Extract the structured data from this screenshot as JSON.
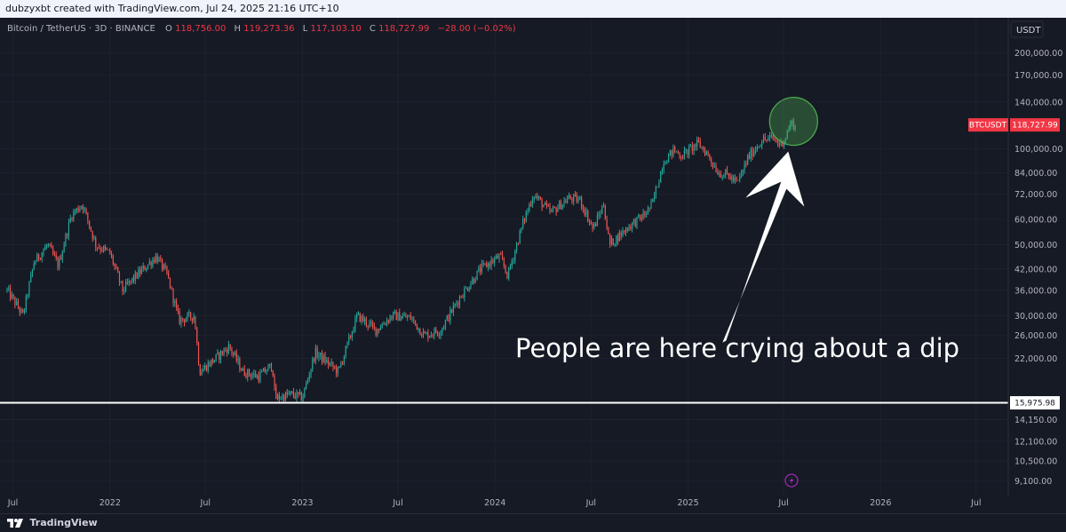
{
  "header": {
    "credit": "dubzyxbt created with TradingView.com, Jul 24, 2025 21:16 UTC+10"
  },
  "symbol_info": {
    "name": "Bitcoin / TetherUS · 3D · BINANCE",
    "open_label": "O",
    "open": "118,756.00",
    "high_label": "H",
    "high": "119,273.36",
    "low_label": "L",
    "low": "117,103.10",
    "close_label": "C",
    "close": "118,727.99",
    "change": "−28.00 (−0.02%)"
  },
  "price_axis": {
    "currency": "USDT",
    "ticks": [
      "200,000.00",
      "170,000.00",
      "140,000.00",
      "100,000.00",
      "84,000.00",
      "72,000.00",
      "60,000.00",
      "50,000.00",
      "42,000.00",
      "36,000.00",
      "30,000.00",
      "26,000.00",
      "22,000.00",
      "14,150.00",
      "12,100.00",
      "10,500.00",
      "9,100.00"
    ],
    "last_price_tag": {
      "symbol": "BTCUSDT",
      "price": "118,727.99"
    },
    "line_tag": "15,975.98"
  },
  "time_axis": {
    "labels": [
      "Jul",
      "2022",
      "Jul",
      "2023",
      "Jul",
      "2024",
      "Jul",
      "2025",
      "Jul",
      "2026",
      "Jul"
    ]
  },
  "annotation": {
    "text": "People are here crying about a dip"
  },
  "footer": {
    "brand": "TradingView"
  },
  "colors": {
    "background": "#161a25",
    "up": "#26a69a",
    "down": "#ef5350",
    "axis_text": "#b2b5be",
    "last_price_tag": "#f23645",
    "horizontal_line": "#ffffff",
    "highlight_circle": "#4caf50"
  },
  "chart_data": {
    "type": "candlestick",
    "scale": "log",
    "title": "Bitcoin / TetherUS · 3D · BINANCE",
    "ylim": [
      8500,
      215000
    ],
    "x_range": [
      "2021-06-20",
      "2026-08-31"
    ],
    "series": [
      {
        "name": "BTCUSDT",
        "close_path": [
          [
            "2021-06-20",
            36000
          ],
          [
            "2021-07-10",
            32000
          ],
          [
            "2021-07-20",
            30000
          ],
          [
            "2021-08-10",
            44000
          ],
          [
            "2021-09-05",
            50000
          ],
          [
            "2021-09-25",
            43000
          ],
          [
            "2021-10-20",
            62000
          ],
          [
            "2021-11-10",
            67000
          ],
          [
            "2021-12-05",
            50000
          ],
          [
            "2022-01-01",
            47000
          ],
          [
            "2022-01-25",
            36000
          ],
          [
            "2022-02-20",
            40000
          ],
          [
            "2022-03-30",
            46000
          ],
          [
            "2022-04-20",
            40000
          ],
          [
            "2022-05-12",
            29000
          ],
          [
            "2022-06-10",
            30000
          ],
          [
            "2022-06-20",
            20000
          ],
          [
            "2022-07-20",
            22000
          ],
          [
            "2022-08-15",
            24000
          ],
          [
            "2022-09-10",
            20000
          ],
          [
            "2022-10-10",
            19300
          ],
          [
            "2022-11-05",
            21000
          ],
          [
            "2022-11-10",
            16500
          ],
          [
            "2022-12-10",
            17000
          ],
          [
            "2023-01-01",
            16600
          ],
          [
            "2023-01-25",
            23000
          ],
          [
            "2023-03-10",
            20000
          ],
          [
            "2023-04-15",
            30000
          ],
          [
            "2023-05-20",
            27000
          ],
          [
            "2023-06-20",
            30000
          ],
          [
            "2023-07-25",
            29500
          ],
          [
            "2023-08-20",
            26000
          ],
          [
            "2023-09-20",
            27000
          ],
          [
            "2023-10-25",
            34000
          ],
          [
            "2023-12-05",
            42000
          ],
          [
            "2024-01-10",
            46000
          ],
          [
            "2024-01-25",
            40000
          ],
          [
            "2024-02-25",
            60000
          ],
          [
            "2024-03-14",
            72000
          ],
          [
            "2024-04-15",
            63000
          ],
          [
            "2024-05-20",
            70000
          ],
          [
            "2024-06-10",
            69000
          ],
          [
            "2024-07-05",
            56000
          ],
          [
            "2024-07-25",
            67000
          ],
          [
            "2024-08-05",
            50000
          ],
          [
            "2024-09-10",
            57000
          ],
          [
            "2024-10-10",
            62000
          ],
          [
            "2024-10-25",
            67000
          ],
          [
            "2024-11-15",
            91000
          ],
          [
            "2024-12-05",
            99000
          ],
          [
            "2024-12-20",
            95000
          ],
          [
            "2025-01-20",
            104000
          ],
          [
            "2025-02-05",
            97000
          ],
          [
            "2025-02-28",
            84000
          ],
          [
            "2025-03-15",
            83000
          ],
          [
            "2025-04-05",
            78000
          ],
          [
            "2025-04-25",
            94000
          ],
          [
            "2025-05-20",
            106000
          ],
          [
            "2025-06-10",
            108000
          ],
          [
            "2025-06-25",
            103000
          ],
          [
            "2025-07-05",
            109000
          ],
          [
            "2025-07-14",
            120000
          ],
          [
            "2025-07-24",
            118727.99
          ]
        ]
      }
    ],
    "horizontal_line": {
      "value": 15975.98
    },
    "highlight": {
      "date": "2025-07-20",
      "price": 118727.99
    }
  }
}
